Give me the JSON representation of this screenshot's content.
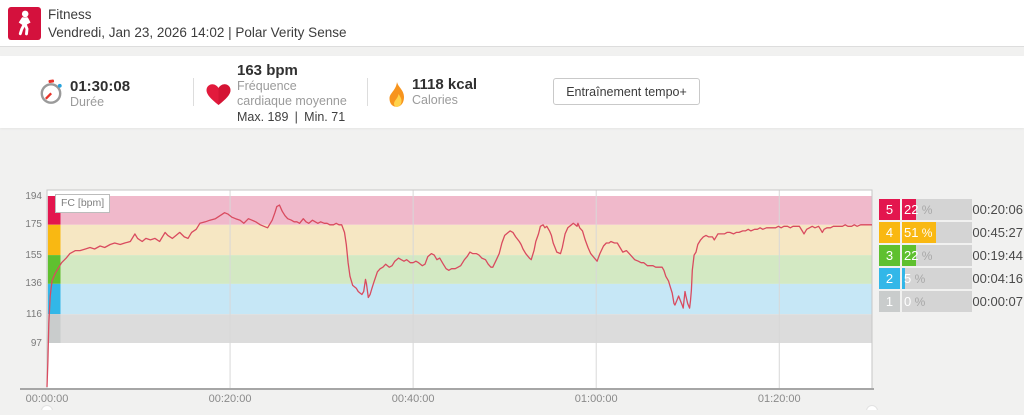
{
  "header": {
    "title": "Fitness",
    "subtitle": "Vendredi, Jan 23, 2026 14:02 | Polar Verity Sense"
  },
  "stats": {
    "duration": {
      "value": "01:30:08",
      "label": "Durée"
    },
    "heart_rate": {
      "value": "163 bpm",
      "label": "Fréquence cardiaque moyenne",
      "max_min": "Max. 189 | Min. 71"
    },
    "calories": {
      "value": "1118 kcal",
      "label": "Calories"
    }
  },
  "actions": {
    "tempo_button": "Entraînement tempo+"
  },
  "zone_table": {
    "rows": [
      {
        "zone": "5",
        "percent": 22,
        "time": "00:20:06"
      },
      {
        "zone": "4",
        "percent": 51,
        "time": "00:45:27"
      },
      {
        "zone": "3",
        "percent": 22,
        "time": "00:19:44"
      },
      {
        "zone": "2",
        "percent": 5,
        "time": "00:04:16"
      },
      {
        "zone": "1",
        "percent": 0,
        "time": "00:00:07"
      }
    ]
  },
  "chart_data": {
    "type": "line",
    "title": "FC [bpm]",
    "ylabel": "FC [bpm]",
    "x_ticks": [
      "00:00:00",
      "00:20:00",
      "00:40:00",
      "01:00:00",
      "01:20:00"
    ],
    "x_tick_minutes": [
      0,
      20,
      40,
      60,
      80
    ],
    "duration_min": 90.13,
    "y_ticks": [
      194,
      175,
      155,
      136,
      116,
      97
    ],
    "ylim": [
      67,
      198
    ],
    "zones": [
      {
        "zone": "5",
        "low": 175,
        "high": 194,
        "color": "#e3164e",
        "band": "#f0b9cb"
      },
      {
        "zone": "4",
        "low": 155,
        "high": 175,
        "color": "#f9b812",
        "band": "#f6e7c3"
      },
      {
        "zone": "3",
        "low": 136,
        "high": 155,
        "color": "#5fc02f",
        "band": "#d3e9c3"
      },
      {
        "zone": "2",
        "low": 116,
        "high": 136,
        "color": "#32b7e8",
        "band": "#c6e7f6"
      },
      {
        "zone": "1",
        "low": 97,
        "high": 116,
        "color": "#c9cccc",
        "band": "#dcdcdc"
      }
    ],
    "line_color": "#d94b5f",
    "series": [
      {
        "name": "FC",
        "points": [
          [
            0,
            68
          ],
          [
            0.1,
            85
          ],
          [
            0.2,
            110
          ],
          [
            0.35,
            128
          ],
          [
            0.55,
            138
          ],
          [
            0.9,
            143
          ],
          [
            1.2,
            146
          ],
          [
            1.6,
            150
          ],
          [
            2.1,
            153
          ],
          [
            2.5,
            156
          ],
          [
            3.1,
            158
          ],
          [
            3.6,
            158
          ],
          [
            4.2,
            159
          ],
          [
            4.7,
            160
          ],
          [
            5.2,
            159
          ],
          [
            5.8,
            161
          ],
          [
            6.3,
            160
          ],
          [
            6.9,
            162
          ],
          [
            7.4,
            163
          ],
          [
            8,
            162
          ],
          [
            8.5,
            163
          ],
          [
            9.1,
            164
          ],
          [
            9.6,
            169
          ],
          [
            9.9,
            166
          ],
          [
            10.4,
            164
          ],
          [
            10.8,
            166
          ],
          [
            11.3,
            165
          ],
          [
            11.8,
            166
          ],
          [
            12.3,
            164
          ],
          [
            12.9,
            170
          ],
          [
            13.2,
            168
          ],
          [
            13.7,
            166
          ],
          [
            14.1,
            168
          ],
          [
            14.5,
            170
          ],
          [
            15,
            167
          ],
          [
            15.4,
            166
          ],
          [
            15.8,
            170
          ],
          [
            16.3,
            172
          ],
          [
            16.7,
            176
          ],
          [
            17.3,
            177
          ],
          [
            17.8,
            178
          ],
          [
            18.4,
            179
          ],
          [
            18.9,
            181
          ],
          [
            19.4,
            183
          ],
          [
            19.8,
            182
          ],
          [
            20.2,
            180
          ],
          [
            20.6,
            179
          ],
          [
            21.1,
            178
          ],
          [
            21.5,
            176
          ],
          [
            22,
            179
          ],
          [
            22.4,
            178
          ],
          [
            22.8,
            177
          ],
          [
            23.3,
            175
          ],
          [
            23.7,
            174
          ],
          [
            24.1,
            173
          ],
          [
            24.6,
            178
          ],
          [
            24.9,
            183
          ],
          [
            25.1,
            187
          ],
          [
            25.4,
            188
          ],
          [
            25.7,
            184
          ],
          [
            26,
            181
          ],
          [
            26.3,
            179
          ],
          [
            26.7,
            178
          ],
          [
            27,
            177
          ],
          [
            27.3,
            177
          ],
          [
            27.6,
            176
          ],
          [
            28,
            179
          ],
          [
            28.3,
            177
          ],
          [
            28.6,
            176
          ],
          [
            29,
            178
          ],
          [
            29.3,
            177
          ],
          [
            29.6,
            176
          ],
          [
            29.9,
            177
          ],
          [
            30.3,
            176
          ],
          [
            30.6,
            176
          ],
          [
            30.9,
            175
          ],
          [
            31.3,
            175
          ],
          [
            31.6,
            176
          ],
          [
            31.9,
            175
          ],
          [
            32.2,
            175
          ],
          [
            32.5,
            170
          ],
          [
            32.7,
            162
          ],
          [
            32.9,
            150
          ],
          [
            33.1,
            141
          ],
          [
            33.4,
            135
          ],
          [
            33.8,
            133
          ],
          [
            34,
            131
          ],
          [
            34.2,
            130
          ],
          [
            34.4,
            129
          ],
          [
            34.6,
            131
          ],
          [
            34.8,
            139
          ],
          [
            34.9,
            136
          ],
          [
            35.1,
            127
          ],
          [
            35.3,
            129
          ],
          [
            35.5,
            133
          ],
          [
            35.7,
            137
          ],
          [
            36.1,
            144
          ],
          [
            36.4,
            146
          ],
          [
            36.7,
            147
          ],
          [
            37,
            149
          ],
          [
            37.4,
            147
          ],
          [
            37.7,
            148
          ],
          [
            38,
            151
          ],
          [
            38.4,
            153
          ],
          [
            38.7,
            152
          ],
          [
            39,
            151
          ],
          [
            39.3,
            152
          ],
          [
            39.7,
            150
          ],
          [
            40,
            150
          ],
          [
            40.3,
            151
          ],
          [
            40.6,
            150
          ],
          [
            41,
            148
          ],
          [
            41.3,
            149
          ],
          [
            41.6,
            154
          ],
          [
            42,
            156
          ],
          [
            42.3,
            155
          ],
          [
            42.6,
            152
          ],
          [
            42.9,
            153
          ],
          [
            43.3,
            149
          ],
          [
            43.6,
            146
          ],
          [
            43.9,
            145
          ],
          [
            44.2,
            146
          ],
          [
            44.6,
            146
          ],
          [
            44.9,
            147
          ],
          [
            45.2,
            148
          ],
          [
            45.6,
            152
          ],
          [
            45.9,
            154
          ],
          [
            46.2,
            157
          ],
          [
            46.5,
            156
          ],
          [
            46.9,
            156
          ],
          [
            47.2,
            155
          ],
          [
            47.5,
            153
          ],
          [
            47.9,
            152
          ],
          [
            48.2,
            149
          ],
          [
            48.5,
            147
          ],
          [
            48.7,
            147
          ],
          [
            49.1,
            152
          ],
          [
            49.4,
            156
          ],
          [
            49.7,
            163
          ],
          [
            50,
            168
          ],
          [
            50.4,
            170
          ],
          [
            50.6,
            171
          ],
          [
            50.9,
            170
          ],
          [
            51.2,
            167
          ],
          [
            51.6,
            164
          ],
          [
            51.8,
            162
          ],
          [
            52,
            159
          ],
          [
            52.3,
            156
          ],
          [
            52.7,
            153
          ],
          [
            52.9,
            152
          ],
          [
            53.2,
            158
          ],
          [
            53.4,
            164
          ],
          [
            53.7,
            169
          ],
          [
            53.9,
            174
          ],
          [
            54.2,
            175
          ],
          [
            54.4,
            173
          ],
          [
            54.6,
            174
          ],
          [
            54.9,
            171
          ],
          [
            55.1,
            168
          ],
          [
            55.3,
            163
          ],
          [
            55.5,
            160
          ],
          [
            55.7,
            157
          ],
          [
            56.1,
            156
          ],
          [
            56.3,
            160
          ],
          [
            56.6,
            169
          ],
          [
            56.9,
            173
          ],
          [
            57.3,
            175
          ],
          [
            57.5,
            176
          ],
          [
            57.7,
            175
          ],
          [
            57.9,
            174
          ],
          [
            58,
            176
          ],
          [
            58.2,
            173
          ],
          [
            58.5,
            171
          ],
          [
            58.8,
            165
          ],
          [
            59.1,
            160
          ],
          [
            59.4,
            156
          ],
          [
            59.8,
            153
          ],
          [
            60.1,
            151
          ],
          [
            60.4,
            156
          ],
          [
            60.8,
            161
          ],
          [
            61.1,
            163
          ],
          [
            61.4,
            163
          ],
          [
            61.6,
            164
          ],
          [
            62,
            163
          ],
          [
            62.3,
            163
          ],
          [
            62.6,
            160
          ],
          [
            62.9,
            157
          ],
          [
            63.3,
            158
          ],
          [
            63.6,
            156
          ],
          [
            63.9,
            154
          ],
          [
            64.2,
            152
          ],
          [
            64.6,
            151
          ],
          [
            64.9,
            150
          ],
          [
            65.2,
            150
          ],
          [
            65.6,
            148
          ],
          [
            65.9,
            148
          ],
          [
            66.2,
            148
          ],
          [
            66.5,
            147
          ],
          [
            66.9,
            147
          ],
          [
            67.2,
            147
          ],
          [
            67.4,
            145
          ],
          [
            67.6,
            141
          ],
          [
            67.9,
            138
          ],
          [
            68.1,
            134
          ],
          [
            68.3,
            130
          ],
          [
            68.5,
            123
          ],
          [
            68.6,
            122
          ],
          [
            68.8,
            125
          ],
          [
            69,
            128
          ],
          [
            69.2,
            125
          ],
          [
            69.4,
            122
          ],
          [
            69.5,
            120
          ],
          [
            69.7,
            131
          ],
          [
            69.8,
            128
          ],
          [
            70,
            123
          ],
          [
            70.2,
            120
          ],
          [
            70.3,
            125
          ],
          [
            70.4,
            132
          ],
          [
            70.5,
            145
          ],
          [
            70.7,
            155
          ],
          [
            70.9,
            157
          ],
          [
            71.1,
            162
          ],
          [
            71.4,
            165
          ],
          [
            71.7,
            167
          ],
          [
            72,
            168
          ],
          [
            72.3,
            167
          ],
          [
            72.7,
            167
          ],
          [
            72.9,
            165
          ],
          [
            73.1,
            167
          ],
          [
            73.3,
            169
          ],
          [
            73.7,
            169
          ],
          [
            74,
            169
          ],
          [
            74.3,
            170
          ],
          [
            74.6,
            170
          ],
          [
            75,
            169
          ],
          [
            75.3,
            170
          ],
          [
            75.6,
            170
          ],
          [
            76,
            171
          ],
          [
            76.3,
            171
          ],
          [
            76.6,
            172
          ],
          [
            76.9,
            171
          ],
          [
            77.3,
            172
          ],
          [
            77.6,
            172
          ],
          [
            77.9,
            173
          ],
          [
            78.2,
            172
          ],
          [
            78.6,
            173
          ],
          [
            78.9,
            173
          ],
          [
            79.2,
            173
          ],
          [
            79.6,
            173
          ],
          [
            79.9,
            174
          ],
          [
            80.2,
            173
          ],
          [
            80.5,
            174
          ],
          [
            80.9,
            174
          ],
          [
            81.2,
            173
          ],
          [
            81.5,
            174
          ],
          [
            81.9,
            174
          ],
          [
            82.2,
            174
          ],
          [
            82.5,
            171
          ],
          [
            82.7,
            169
          ],
          [
            83,
            172
          ],
          [
            83.3,
            173
          ],
          [
            83.6,
            174
          ],
          [
            83.9,
            173
          ],
          [
            84.3,
            174
          ],
          [
            84.5,
            172
          ],
          [
            84.7,
            170
          ],
          [
            84.9,
            172
          ],
          [
            85.2,
            173
          ],
          [
            85.6,
            173
          ],
          [
            85.9,
            174
          ],
          [
            86.2,
            174
          ],
          [
            86.6,
            174
          ],
          [
            86.9,
            174
          ],
          [
            87.2,
            175
          ],
          [
            87.5,
            174
          ],
          [
            87.9,
            174
          ],
          [
            88.2,
            175
          ],
          [
            88.5,
            174
          ],
          [
            88.9,
            175
          ],
          [
            89.2,
            175
          ],
          [
            89.5,
            175
          ],
          [
            89.8,
            175
          ],
          [
            90.13,
            175
          ]
        ]
      }
    ]
  }
}
